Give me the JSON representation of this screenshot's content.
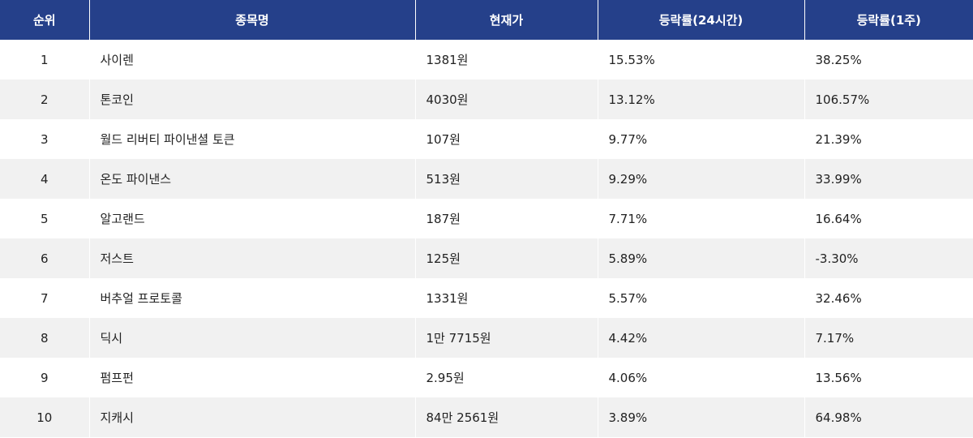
{
  "table": {
    "headers": {
      "rank": "순위",
      "name": "종목명",
      "price": "현재가",
      "change_24h": "등락률(24시간)",
      "change_1w": "등락률(1주)"
    },
    "rows": [
      {
        "rank": "1",
        "name": "사이렌",
        "price": "1381원",
        "change_24h": "15.53%",
        "change_1w": "38.25%"
      },
      {
        "rank": "2",
        "name": "톤코인",
        "price": "4030원",
        "change_24h": "13.12%",
        "change_1w": "106.57%"
      },
      {
        "rank": "3",
        "name": "월드 리버티 파이낸셜 토큰",
        "price": "107원",
        "change_24h": "9.77%",
        "change_1w": "21.39%"
      },
      {
        "rank": "4",
        "name": "온도 파이낸스",
        "price": "513원",
        "change_24h": "9.29%",
        "change_1w": "33.99%"
      },
      {
        "rank": "5",
        "name": "알고랜드",
        "price": "187원",
        "change_24h": "7.71%",
        "change_1w": "16.64%"
      },
      {
        "rank": "6",
        "name": "저스트",
        "price": "125원",
        "change_24h": "5.89%",
        "change_1w": "-3.30%"
      },
      {
        "rank": "7",
        "name": "버추얼 프로토콜",
        "price": "1331원",
        "change_24h": "5.57%",
        "change_1w": "32.46%"
      },
      {
        "rank": "8",
        "name": "딕시",
        "price": "1만 7715원",
        "change_24h": "4.42%",
        "change_1w": "7.17%"
      },
      {
        "rank": "9",
        "name": "펌프펀",
        "price": "2.95원",
        "change_24h": "4.06%",
        "change_1w": "13.56%"
      },
      {
        "rank": "10",
        "name": "지캐시",
        "price": "84만 2561원",
        "change_24h": "3.89%",
        "change_1w": "64.98%"
      }
    ]
  }
}
